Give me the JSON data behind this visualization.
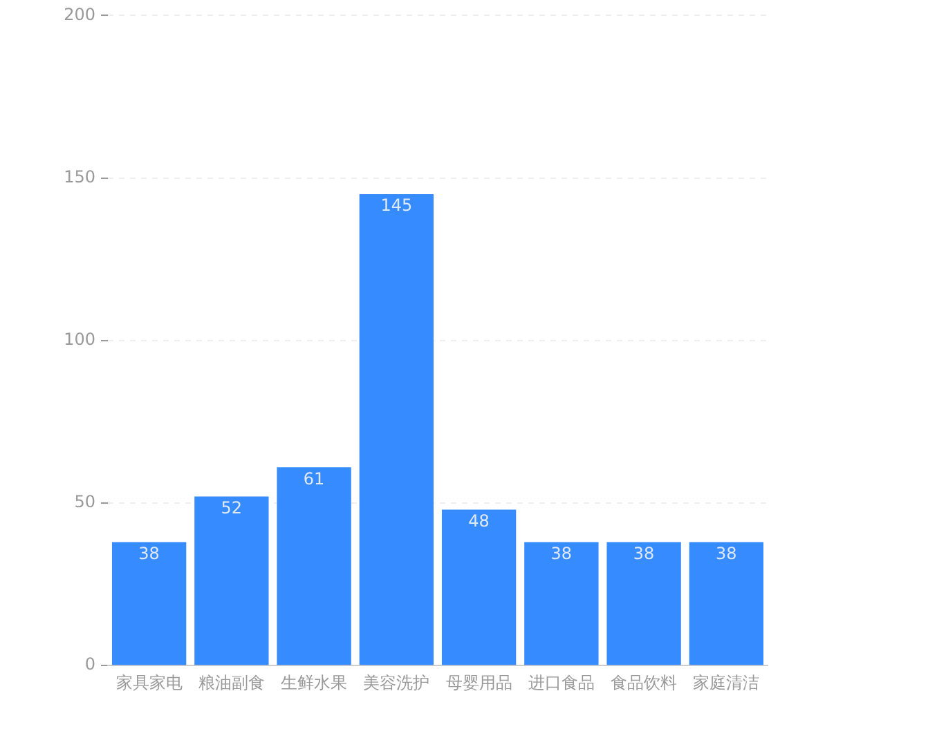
{
  "chart_data": {
    "type": "bar",
    "categories": [
      "家具家电",
      "粮油副食",
      "生鲜水果",
      "美容洗护",
      "母婴用品",
      "进口食品",
      "食品饮料",
      "家庭清洁"
    ],
    "values": [
      38,
      52,
      61,
      145,
      48,
      38,
      38,
      38
    ],
    "color": "#368cff",
    "ylim": [
      0,
      200
    ],
    "yticks": [
      0,
      50,
      100,
      150,
      200
    ],
    "grid": "y",
    "data_labels": true
  }
}
